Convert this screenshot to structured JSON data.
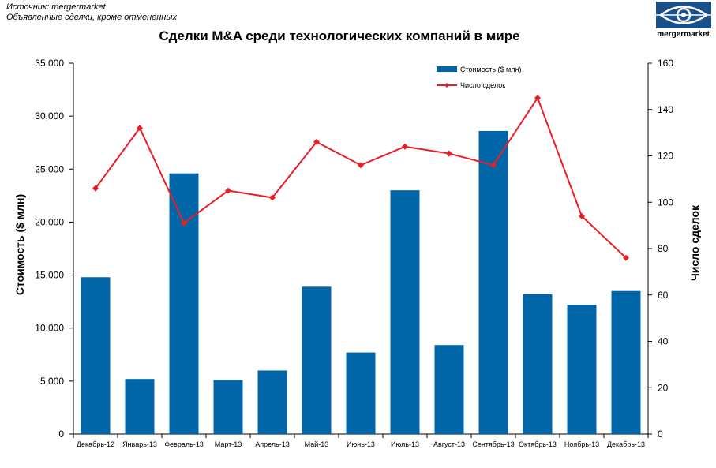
{
  "source": {
    "line1": "Источник: mergermarket",
    "line2": "Объявленные сделки, кроме отмененных"
  },
  "logo": {
    "text": "mergermarket",
    "icon": "eye-icon"
  },
  "colors": {
    "bar": "#0066a8",
    "line": "#ee1c25",
    "logo": "#1a4f8a"
  },
  "chart_data": {
    "type": "bar",
    "title": "Сделки M&A среди технологических компаний в мире",
    "categories": [
      "Декабрь-12",
      "Январь-13",
      "Февраль-13",
      "Март-13",
      "Апрель-13",
      "Май-13",
      "Июнь-13",
      "Июль-13",
      "Август-13",
      "Сентябрь-13",
      "Октябрь-13",
      "Ноябрь-13",
      "Декабрь-13"
    ],
    "series": [
      {
        "name": "Стоимость ($ млн)",
        "type": "bar",
        "axis": "left",
        "values": [
          14800,
          5200,
          24600,
          5100,
          6000,
          13900,
          7700,
          23000,
          8400,
          28600,
          13200,
          12200,
          13500
        ]
      },
      {
        "name": "Число сделок",
        "type": "line",
        "axis": "right",
        "values": [
          106,
          132,
          91,
          105,
          102,
          126,
          116,
          124,
          121,
          116,
          145,
          94,
          76
        ]
      }
    ],
    "ylabel": "Стоимость  ($ млн)",
    "y2label": "Число сделок",
    "ylim": [
      0,
      35000
    ],
    "y2lim": [
      0,
      160
    ],
    "yticks": [
      "0",
      "5,000",
      "10,000",
      "15,000",
      "20,000",
      "25,000",
      "30,000",
      "35,000"
    ],
    "y2ticks": [
      "0",
      "20",
      "40",
      "60",
      "80",
      "100",
      "120",
      "140",
      "160"
    ],
    "legend_position": "top-right",
    "grid": false
  }
}
